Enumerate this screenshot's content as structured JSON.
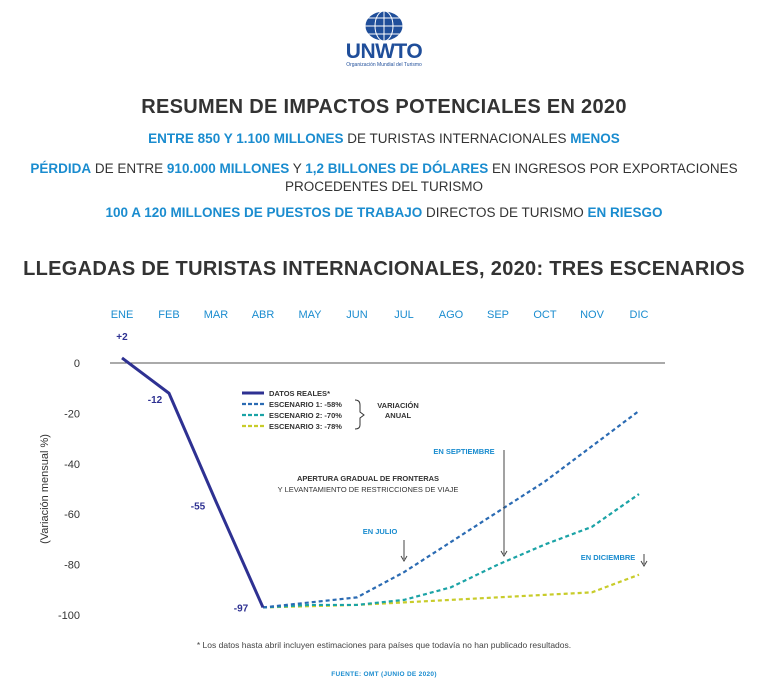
{
  "header": {
    "logo_text": "UNWTO",
    "logo_subtitle": "Organización Mundial del Turismo",
    "summary_title": "RESUMEN DE IMPACTOS POTENCIALES EN 2020",
    "line1": [
      {
        "t": "ENTRE 850 Y 1.100 MILLONES",
        "b": true
      },
      {
        "t": " DE TURISTAS INTERNACIONALES ",
        "b": false
      },
      {
        "t": "MENOS",
        "b": true
      }
    ],
    "line2": [
      {
        "t": "PÉRDIDA",
        "b": true
      },
      {
        "t": " DE ENTRE ",
        "b": false
      },
      {
        "t": "910.000 MILLONES",
        "b": true
      },
      {
        "t": " Y ",
        "b": false
      },
      {
        "t": "1,2 BILLONES DE DÓLARES",
        "b": true
      },
      {
        "t": " EN INGRESOS POR EXPORTACIONES",
        "b": false
      },
      {
        "br": true
      },
      {
        "t": "PROCEDENTES DEL TURISMO",
        "b": false
      }
    ],
    "line3": [
      {
        "t": "100 A 120 MILLONES DE PUESTOS DE TRABAJO",
        "b": true
      },
      {
        "t": " DIRECTOS DE TURISMO ",
        "b": false
      },
      {
        "t": "EN RIESGO",
        "b": true
      }
    ]
  },
  "chart_data": {
    "type": "line",
    "title": "LLEGADAS DE TURISTAS INTERNACIONALES, 2020: TRES ESCENARIOS",
    "ylabel": "(Variación mensual %)",
    "categories": [
      "ENE",
      "FEB",
      "MAR",
      "ABR",
      "MAY",
      "JUN",
      "JUL",
      "AGO",
      "SEP",
      "OCT",
      "NOV",
      "DIC"
    ],
    "ylim": [
      -100,
      0
    ],
    "yticks": [
      0,
      -20,
      -40,
      -60,
      -80,
      -100
    ],
    "x_axis_position": "top",
    "series": [
      {
        "name": "DATOS REALES*",
        "color": "#2e3192",
        "style": "solid",
        "x": [
          "ENE",
          "FEB",
          "MAR",
          "ABR"
        ],
        "values": [
          2,
          -12,
          -55,
          -97
        ]
      },
      {
        "name": "ESCENARIO 1: -58%",
        "color": "#2b6bb3",
        "style": "dashed",
        "x": [
          "ABR",
          "MAY",
          "JUN",
          "JUL",
          "AGO",
          "SEP",
          "OCT",
          "NOV",
          "DIC"
        ],
        "values": [
          -97,
          -95,
          -93,
          -83,
          -71,
          -59,
          -47,
          -33,
          -19
        ]
      },
      {
        "name": "ESCENARIO 2: -70%",
        "color": "#1ba3a6",
        "style": "dashed",
        "x": [
          "ABR",
          "MAY",
          "JUN",
          "JUL",
          "AGO",
          "SEP",
          "OCT",
          "NOV",
          "DIC"
        ],
        "values": [
          -97,
          -96,
          -96,
          -94,
          -89,
          -80,
          -72,
          -65,
          -52
        ]
      },
      {
        "name": "ESCENARIO 3: -78%",
        "color": "#c8cc2a",
        "style": "dashed",
        "x": [
          "ABR",
          "MAY",
          "JUN",
          "JUL",
          "AGO",
          "SEP",
          "OCT",
          "NOV",
          "DIC"
        ],
        "values": [
          -97,
          -96.5,
          -96,
          -95,
          -94,
          -93,
          -92,
          -91,
          -84
        ]
      }
    ],
    "data_labels": [
      {
        "x": "ENE",
        "value": 2,
        "text": "+2"
      },
      {
        "x": "FEB",
        "value": -12,
        "text": "-12"
      },
      {
        "x": "MAR",
        "value": -55,
        "text": "-55"
      },
      {
        "x": "ABR",
        "value": -97,
        "text": "-97"
      }
    ],
    "legend_group_label": "VARIACIÓN ANUAL",
    "annotations": [
      {
        "text": "EN JULIO",
        "x": "JUL"
      },
      {
        "text": "EN SEPTIEMBRE",
        "x": "SEP"
      },
      {
        "text": "EN DICIEMBRE",
        "x": "DIC"
      },
      {
        "text": "APERTURA GRADUAL DE FRONTERAS"
      },
      {
        "text": "Y LEVANTAMIENTO DE RESTRICCIONES DE VIAJE"
      }
    ]
  },
  "footer": {
    "note": "* Los datos hasta abril incluyen estimaciones para países que todavía no han publicado resultados.",
    "source": "FUENTE: OMT (JUNIO DE 2020)"
  }
}
